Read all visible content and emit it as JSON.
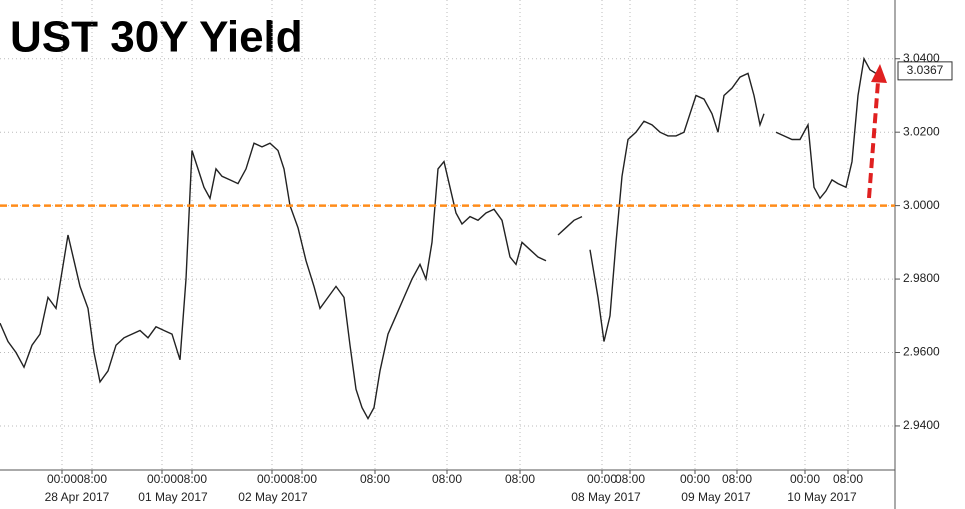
{
  "chart_data": {
    "type": "line",
    "title": "UST 30Y Yield",
    "x": [
      0,
      8,
      16,
      24,
      32,
      40,
      48,
      56,
      62,
      68,
      74,
      80,
      88,
      94,
      100,
      108,
      116,
      124,
      132,
      140,
      148,
      156,
      164,
      172,
      180,
      186,
      192,
      198,
      204,
      210,
      216,
      222,
      230,
      238,
      246,
      254,
      262,
      270,
      278,
      284,
      290,
      298,
      306,
      314,
      320,
      328,
      336,
      344,
      350,
      356,
      362,
      368,
      374,
      380,
      388,
      396,
      404,
      412,
      420,
      426,
      432,
      438,
      444,
      450,
      456,
      462,
      470,
      478,
      486,
      494,
      502,
      510,
      516,
      522,
      530,
      538,
      546,
      552,
      558,
      566,
      574,
      582,
      586,
      590,
      598,
      604,
      610,
      616,
      622,
      628,
      636,
      644,
      652,
      660,
      668,
      676,
      684,
      690,
      696,
      704,
      712,
      718,
      724,
      732,
      740,
      748,
      754,
      760,
      764,
      770,
      776,
      784,
      792,
      800,
      808,
      814,
      820,
      826,
      832,
      838,
      846,
      852,
      858,
      864,
      870,
      876
    ],
    "series": [
      {
        "color": "#222222",
        "values": [
          2.968,
          2.963,
          2.96,
          2.956,
          2.962,
          2.965,
          2.975,
          2.972,
          2.982,
          2.992,
          2.985,
          2.978,
          2.972,
          2.96,
          2.952,
          2.955,
          2.962,
          2.964,
          2.965,
          2.966,
          2.964,
          2.967,
          2.966,
          2.965,
          2.958,
          2.98,
          3.015,
          3.01,
          3.005,
          3.002,
          3.01,
          3.008,
          3.007,
          3.006,
          3.01,
          3.017,
          3.016,
          3.017,
          3.015,
          3.01,
          3.0,
          2.994,
          2.985,
          2.978,
          2.972,
          2.975,
          2.978,
          2.975,
          2.962,
          2.95,
          2.945,
          2.942,
          2.945,
          2.955,
          2.965,
          2.97,
          2.975,
          2.98,
          2.984,
          2.98,
          2.99,
          3.01,
          3.012,
          3.005,
          2.998,
          2.995,
          2.997,
          2.996,
          2.998,
          2.999,
          2.996,
          2.986,
          2.984,
          2.99,
          2.988,
          2.986,
          2.985,
          null,
          2.992,
          2.994,
          2.996,
          2.997,
          null,
          2.988,
          2.975,
          2.963,
          2.97,
          2.99,
          3.008,
          3.018,
          3.02,
          3.023,
          3.022,
          3.02,
          3.019,
          3.019,
          3.02,
          3.025,
          3.03,
          3.029,
          3.025,
          3.02,
          3.03,
          3.032,
          3.035,
          3.036,
          3.03,
          3.022,
          3.025,
          null,
          3.02,
          3.019,
          3.018,
          3.018,
          3.022,
          3.005,
          3.002,
          3.004,
          3.007,
          3.006,
          3.005,
          3.012,
          3.03,
          3.04,
          3.037,
          3.036
        ]
      }
    ],
    "xlim": [
      0,
      895
    ],
    "xticks": [
      {
        "value": 62,
        "label": "00:00"
      },
      {
        "value": 92,
        "label": "08:00"
      },
      {
        "value": 162,
        "label": "00:00"
      },
      {
        "value": 192,
        "label": "08:00"
      },
      {
        "value": 272,
        "label": "00:00"
      },
      {
        "value": 302,
        "label": "08:00"
      },
      {
        "value": 375,
        "label": "08:00"
      },
      {
        "value": 447,
        "label": "08:00"
      },
      {
        "value": 520,
        "label": "08:00"
      },
      {
        "value": 602,
        "label": "00:00"
      },
      {
        "value": 630,
        "label": "08:00"
      },
      {
        "value": 695,
        "label": "00:00"
      },
      {
        "value": 737,
        "label": "08:00"
      },
      {
        "value": 805,
        "label": "00:00"
      },
      {
        "value": 848,
        "label": "08:00"
      }
    ],
    "date_labels": [
      {
        "value": 77,
        "label": "28 Apr 2017"
      },
      {
        "value": 173,
        "label": "01 May 2017"
      },
      {
        "value": 273,
        "label": "02 May 2017"
      },
      {
        "value": 606,
        "label": "08 May 2017"
      },
      {
        "value": 716,
        "label": "09 May 2017"
      },
      {
        "value": 822,
        "label": "10 May 2017"
      }
    ],
    "ylim": [
      2.928,
      3.056
    ],
    "yticks": [
      {
        "value": 2.94,
        "label": "2.9400"
      },
      {
        "value": 2.96,
        "label": "2.9600"
      },
      {
        "value": 2.98,
        "label": "2.9800"
      },
      {
        "value": 3.0,
        "label": "3.0000"
      },
      {
        "value": 3.02,
        "label": "3.0200"
      },
      {
        "value": 3.04,
        "label": "3.0400"
      }
    ],
    "reference_line": {
      "value": 3.0,
      "color": "#ff8c1a"
    },
    "last_value": 3.0367,
    "grid": true
  }
}
